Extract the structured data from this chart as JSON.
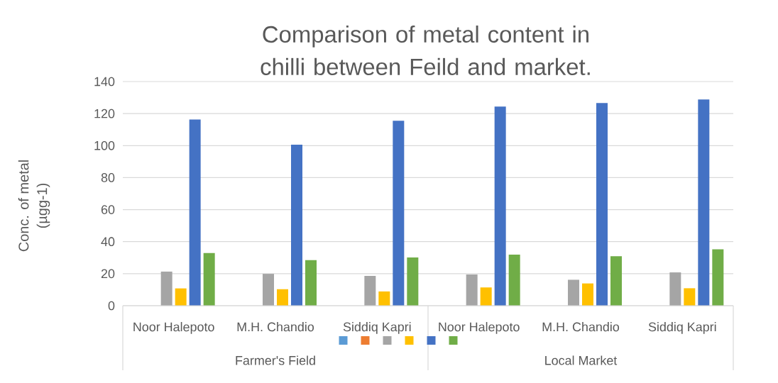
{
  "chart_data": {
    "type": "bar",
    "title": "Comparison of metal content in chilli between Feild and market.",
    "ylabel": "Conc. of metal (µgg-1)",
    "categories": [
      "Noor Halepoto",
      "M.H. Chandio",
      "Siddiq Kapri",
      "Noor Halepoto",
      "M.H. Chandio",
      "Siddiq Kapri"
    ],
    "annotations": [
      "Farmer's Field",
      "Local Market"
    ],
    "series": [
      {
        "color": "#5b9bd5",
        "values": [
          null,
          null,
          null,
          null,
          null,
          null
        ]
      },
      {
        "color": "#ed7d31",
        "values": [
          null,
          null,
          null,
          null,
          null,
          null
        ]
      },
      {
        "color": "#a5a5a5",
        "values": [
          21.3,
          19.9,
          18.6,
          19.5,
          16.2,
          20.8
        ]
      },
      {
        "color": "#ffc000",
        "values": [
          10.8,
          10.3,
          8.9,
          11.4,
          13.9,
          10.9
        ]
      },
      {
        "color": "#4472c4",
        "values": [
          116.3,
          100.6,
          115.5,
          124.4,
          126.6,
          128.8
        ]
      },
      {
        "color": "#70ad47",
        "values": [
          32.9,
          28.5,
          30.1,
          31.9,
          30.9,
          35.2
        ]
      }
    ],
    "ylim": [
      0,
      140
    ],
    "yticks": [
      0,
      20,
      40,
      60,
      80,
      100,
      120,
      140
    ],
    "grid": "y"
  }
}
